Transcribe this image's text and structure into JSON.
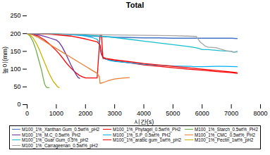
{
  "chart_data": {
    "type": "line",
    "title": "Total",
    "xlabel": "시간(s)",
    "ylabel": "높이(mm)",
    "xlim": [
      0,
      8000
    ],
    "ylim": [
      0,
      250
    ],
    "xticks": [
      0,
      1000,
      2000,
      3000,
      4000,
      5000,
      6000,
      7000,
      8000
    ],
    "yticks": [
      0,
      50,
      100,
      150,
      200,
      250
    ],
    "grid": false,
    "legend": "bottom",
    "series": [
      {
        "name": "M100_1%_Xanthan Gum_0.5wt%_pH2",
        "color": "#4472C4",
        "x": [
          0,
          300,
          1000,
          1500,
          2000,
          2500,
          3000,
          3500,
          4000,
          4500,
          5000,
          5500,
          6000,
          6500,
          7000,
          7200
        ],
        "values": [
          200,
          200,
          199,
          197,
          194,
          192,
          190,
          189,
          188,
          188,
          187,
          187,
          187,
          187,
          187,
          186
        ]
      },
      {
        "name": "M100_1%_Phytagel_0.5wt%_PH2",
        "color": "#FF0000",
        "x": [
          0,
          200,
          400,
          600,
          800,
          1000,
          1100,
          1200,
          1300,
          1400,
          1500,
          1600,
          1700,
          1800,
          1900,
          2000,
          2100,
          2400,
          2500,
          2550,
          2600,
          2700,
          3000,
          3500,
          4000,
          4500,
          5000,
          5500,
          6000,
          6500,
          7000,
          7200
        ],
        "values": [
          200,
          198,
          192,
          182,
          168,
          152,
          143,
          133,
          122,
          112,
          103,
          95,
          88,
          82,
          78,
          75,
          75,
          75,
          195,
          195,
          130,
          128,
          123,
          118,
          112,
          108,
          104,
          100,
          97,
          93,
          90,
          88
        ]
      },
      {
        "name": "M100_1%_Starch_0.5wt%_PH2",
        "color": "#70AD47",
        "x": [
          0,
          100,
          200,
          300,
          400,
          500,
          550,
          600,
          650,
          700,
          750
        ],
        "values": [
          200,
          193,
          178,
          155,
          125,
          95,
          75,
          58,
          50,
          48,
          48
        ]
      },
      {
        "name": "M100_1%_M.C_0.5wt%_PH2",
        "color": "#7030A0",
        "x": [
          0,
          100,
          200,
          400,
          600,
          800,
          1000,
          1100,
          1200,
          1300,
          1400,
          1500,
          1600,
          1700,
          1750,
          1800
        ],
        "values": [
          200,
          199,
          198,
          196,
          192,
          187,
          182,
          175,
          163,
          147,
          130,
          112,
          96,
          82,
          76,
          74
        ]
      },
      {
        "name": "M100_1%_S.P_0.5wt%_PH2",
        "color": "#00B0F0",
        "x": [
          0,
          300,
          800,
          1200,
          1700,
          2000,
          2200,
          2400,
          2480,
          2500,
          2520,
          2550,
          2600,
          2700,
          2800,
          3000,
          3500,
          4000,
          4500,
          5000,
          5500,
          5600,
          5700,
          6000,
          6500,
          6600,
          6700,
          7200
        ],
        "values": [
          200,
          200,
          199,
          198,
          196,
          193,
          190,
          184,
          175,
          158,
          148,
          140,
          133,
          128,
          125,
          122,
          118,
          114,
          111,
          109,
          108,
          108,
          107,
          107,
          108,
          108,
          108,
          107
        ]
      },
      {
        "name": "M100_1%_CMC_0.5wt%_PH2",
        "color": "#ED7D31",
        "x": [
          0,
          200,
          400,
          600,
          800,
          1000,
          1200,
          1400,
          1600,
          1800,
          2000,
          2200,
          2400,
          2480,
          2500,
          2600,
          2700,
          2800,
          3000,
          3200,
          3500
        ],
        "values": [
          200,
          196,
          188,
          178,
          168,
          158,
          148,
          138,
          128,
          118,
          108,
          98,
          88,
          78,
          60,
          62,
          65,
          68,
          72,
          74,
          76
        ]
      },
      {
        "name": "M100_1%_Guar Gum_0.5%_pH2",
        "color": "#17BECF",
        "x": [
          0,
          300,
          800,
          1500,
          2000,
          2500,
          3000,
          3500,
          4000,
          4500,
          5000,
          5500,
          5800,
          5900,
          6000,
          6200,
          6600,
          7000,
          7050,
          7100,
          7200
        ],
        "values": [
          200,
          200,
          199,
          198,
          196,
          193,
          189,
          184,
          179,
          174,
          169,
          164,
          160,
          158,
          155,
          155,
          152,
          150,
          148,
          148,
          150
        ]
      },
      {
        "name": "M100_1%_arabic gum_1wt%_pH2",
        "color": "#FF0000",
        "x": [
          0,
          300,
          800,
          1500,
          2000,
          2400,
          2500,
          2550,
          2600,
          2700,
          3000,
          3500,
          4000,
          4500,
          5000,
          5500,
          6000,
          6500,
          7000,
          7200
        ],
        "values": [
          200,
          200,
          198,
          193,
          185,
          177,
          168,
          145,
          133,
          130,
          126,
          121,
          116,
          112,
          108,
          104,
          100,
          96,
          92,
          90
        ]
      },
      {
        "name": "M100_1%_Pectin_1wt%_pH2",
        "color": "#C8B400",
        "x": [
          0,
          100,
          200,
          300,
          400,
          500,
          600,
          700,
          800,
          900,
          1000,
          1050,
          1100
        ],
        "values": [
          200,
          196,
          188,
          175,
          158,
          138,
          118,
          98,
          80,
          65,
          55,
          50,
          48
        ]
      },
      {
        "name": "M100_1%_Carrageenan_0.5wt%_pH2",
        "color": "#A6A6A6",
        "x": [
          0,
          300,
          1000,
          2000,
          3000,
          4000,
          5000,
          5500,
          5800,
          5900,
          5950,
          6000,
          6100,
          6200,
          6500,
          6600,
          6700,
          6800,
          7000,
          7100,
          7200
        ],
        "values": [
          200,
          200,
          199,
          198,
          196,
          195,
          194,
          193,
          192,
          180,
          175,
          172,
          165,
          162,
          160,
          157,
          155,
          152,
          150,
          148,
          148
        ]
      }
    ]
  }
}
